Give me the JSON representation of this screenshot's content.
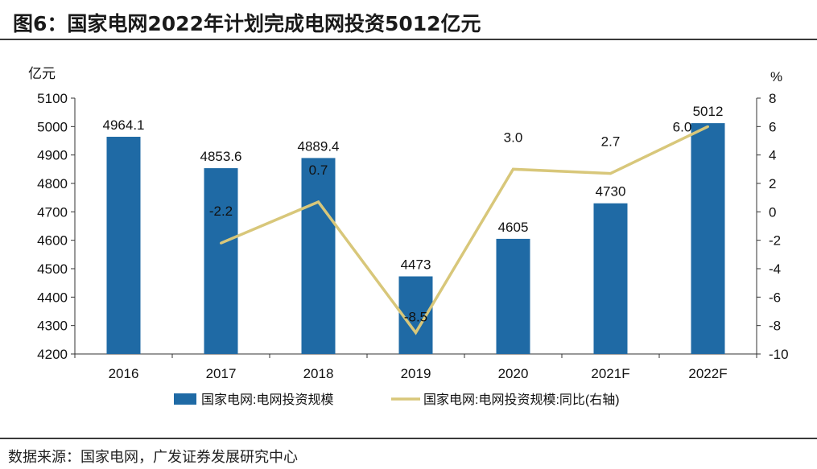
{
  "figure": {
    "title": "图6：国家电网2022年计划完成电网投资5012亿元",
    "source": "数据来源：国家电网，广发证券发展研究中心"
  },
  "chart_data": {
    "type": "bar",
    "categories": [
      "2016",
      "2017",
      "2018",
      "2019",
      "2020",
      "2021F",
      "2022F"
    ],
    "series": [
      {
        "name": "国家电网:电网投资规模",
        "type": "bar",
        "axis": "left",
        "values": [
          4964.1,
          4853.6,
          4889.4,
          4473,
          4605,
          4730,
          5012
        ],
        "data_labels": [
          "4964.1",
          "4853.6",
          "4889.4",
          "4473",
          "4605",
          "4730",
          "5012"
        ],
        "color": "#1f6aa5"
      },
      {
        "name": "国家电网:电网投资规模:同比(右轴)",
        "type": "line",
        "axis": "right",
        "values": [
          null,
          -2.2,
          0.7,
          -8.5,
          3.0,
          2.7,
          6.0
        ],
        "data_labels": [
          "",
          "-2.2",
          "0.7",
          "-8.5",
          "3.0",
          "2.7",
          "6.0"
        ],
        "color": "#d8c77a"
      }
    ],
    "ylabel": "亿元",
    "y2label": "%",
    "ylim": [
      4200,
      5100
    ],
    "y2lim": [
      -10,
      8
    ],
    "yticks": [
      "4200",
      "4300",
      "4400",
      "4500",
      "4600",
      "4700",
      "4800",
      "4900",
      "5000",
      "5100"
    ],
    "y2ticks": [
      "-10",
      "-8",
      "-6",
      "-4",
      "-2",
      "0",
      "2",
      "4",
      "6",
      "8"
    ],
    "grid": false,
    "legend_position": "bottom"
  }
}
